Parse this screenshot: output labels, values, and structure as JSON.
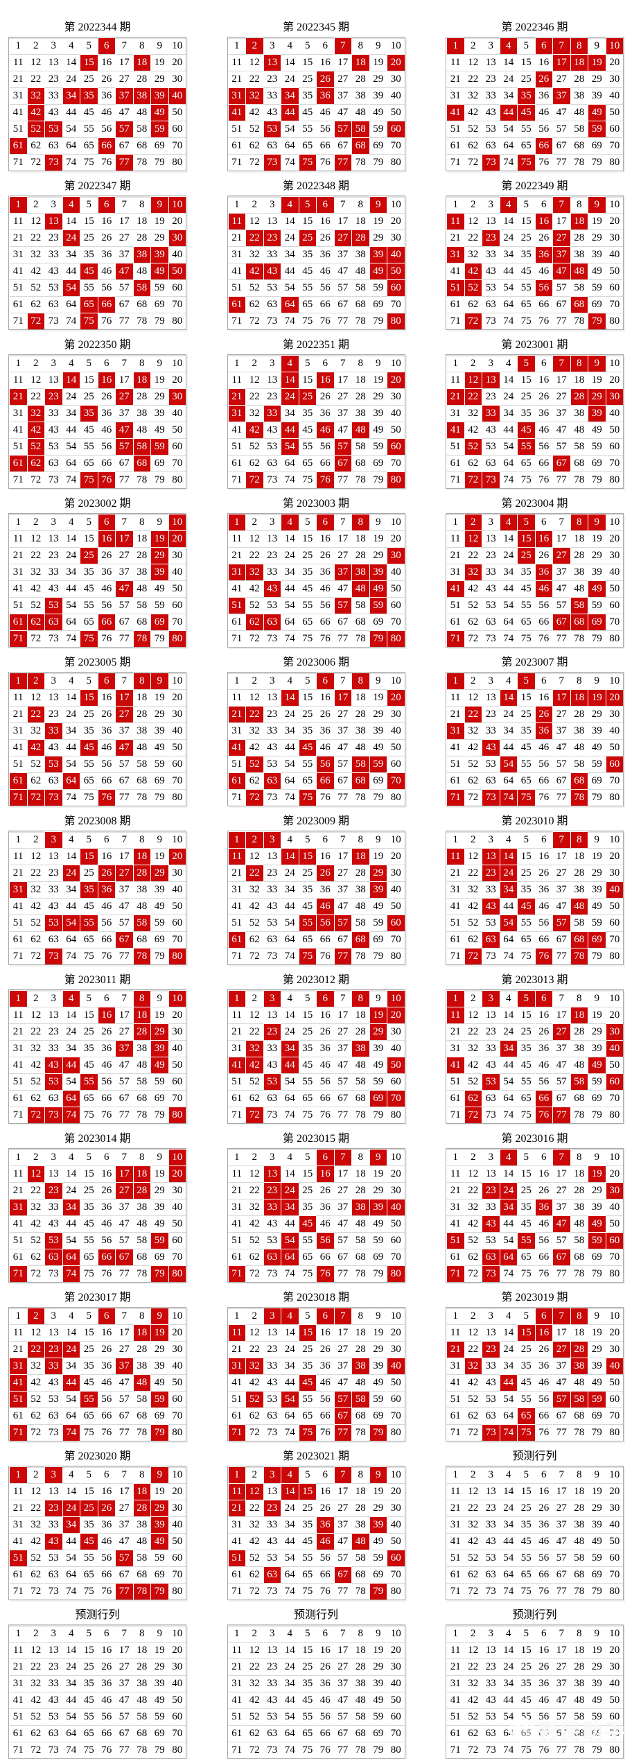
{
  "page": {
    "background": "#ffffff",
    "highlight_color": "#cb0707",
    "grid_border_color": "#a8a8a8",
    "row_line_color": "#d6d6d6",
    "number_color": "#000000",
    "hit_number_color": "#ffffff",
    "title_color": "#000000"
  },
  "grid_spec": {
    "numbers_start": 1,
    "numbers_end": 80,
    "columns": 10,
    "rows": 8,
    "panels_per_row": 3
  },
  "watermark": {
    "text": "彩民助手",
    "icon": "panda-circle-icon"
  },
  "chart_data": {
    "type": "heatmap",
    "description": "Keno-style lottery trend charts: numbers 1-80 per panel, drawn numbers highlighted",
    "panels": [
      {
        "title": "第 2022344 期",
        "hits": [
          6,
          15,
          18,
          32,
          34,
          35,
          37,
          38,
          39,
          40,
          42,
          49,
          52,
          53,
          57,
          59,
          61,
          66,
          73,
          77
        ]
      },
      {
        "title": "第 2022345 期",
        "hits": [
          2,
          7,
          13,
          18,
          20,
          26,
          31,
          32,
          34,
          36,
          41,
          44,
          53,
          57,
          58,
          60,
          68,
          73,
          75,
          77
        ]
      },
      {
        "title": "第 2022346 期",
        "hits": [
          1,
          4,
          6,
          7,
          8,
          10,
          17,
          18,
          19,
          26,
          35,
          37,
          41,
          44,
          45,
          49,
          59,
          66,
          73,
          75
        ]
      },
      {
        "title": "第 2022347 期",
        "hits": [
          1,
          4,
          6,
          9,
          10,
          13,
          24,
          30,
          38,
          39,
          45,
          47,
          49,
          50,
          54,
          58,
          65,
          66,
          72,
          75
        ]
      },
      {
        "title": "第 2022348 期",
        "hits": [
          4,
          5,
          6,
          9,
          11,
          22,
          23,
          25,
          27,
          28,
          39,
          40,
          42,
          43,
          49,
          50,
          60,
          61,
          64,
          80
        ]
      },
      {
        "title": "第 2022349 期",
        "hits": [
          4,
          7,
          9,
          11,
          16,
          18,
          23,
          27,
          31,
          36,
          37,
          42,
          47,
          48,
          51,
          52,
          56,
          68,
          72,
          79
        ]
      },
      {
        "title": "第 2022350 期",
        "hits": [
          14,
          16,
          18,
          21,
          23,
          27,
          30,
          32,
          35,
          42,
          47,
          52,
          57,
          58,
          59,
          61,
          62,
          68,
          75,
          76
        ]
      },
      {
        "title": "第 2022351 期",
        "hits": [
          4,
          14,
          16,
          20,
          21,
          24,
          25,
          31,
          33,
          42,
          44,
          46,
          48,
          54,
          57,
          60,
          67,
          72,
          76,
          80
        ]
      },
      {
        "title": "第 2023001 期",
        "hits": [
          5,
          7,
          8,
          9,
          12,
          13,
          21,
          22,
          28,
          29,
          30,
          33,
          39,
          41,
          45,
          52,
          55,
          67,
          72,
          73
        ]
      },
      {
        "title": "第 2023002 期",
        "hits": [
          6,
          10,
          16,
          17,
          19,
          20,
          25,
          29,
          39,
          47,
          53,
          61,
          62,
          63,
          66,
          69,
          71,
          75,
          78,
          80
        ]
      },
      {
        "title": "第 2023003 期",
        "hits": [
          1,
          4,
          6,
          8,
          30,
          31,
          32,
          37,
          38,
          39,
          43,
          48,
          49,
          51,
          57,
          59,
          62,
          63,
          79,
          80
        ]
      },
      {
        "title": "第 2023004 期",
        "hits": [
          2,
          4,
          5,
          8,
          9,
          12,
          15,
          16,
          25,
          27,
          32,
          36,
          41,
          46,
          49,
          58,
          67,
          68,
          69,
          71
        ]
      },
      {
        "title": "第 2023005 期",
        "hits": [
          1,
          2,
          6,
          8,
          9,
          15,
          17,
          22,
          27,
          33,
          42,
          45,
          47,
          53,
          61,
          64,
          71,
          72,
          73,
          76
        ]
      },
      {
        "title": "第 2023006 期",
        "hits": [
          6,
          8,
          14,
          17,
          20,
          21,
          22,
          41,
          45,
          52,
          56,
          58,
          59,
          61,
          63,
          66,
          68,
          70,
          72,
          75
        ]
      },
      {
        "title": "第 2023007 期",
        "hits": [
          1,
          5,
          14,
          17,
          18,
          19,
          20,
          22,
          26,
          31,
          36,
          43,
          54,
          60,
          68,
          71,
          73,
          74,
          75,
          78
        ]
      },
      {
        "title": "第 2023008 期",
        "hits": [
          3,
          15,
          18,
          20,
          24,
          26,
          27,
          28,
          29,
          31,
          35,
          36,
          53,
          54,
          55,
          58,
          67,
          73,
          78,
          80
        ]
      },
      {
        "title": "第 2023009 期",
        "hits": [
          1,
          2,
          3,
          11,
          14,
          15,
          18,
          22,
          26,
          29,
          39,
          46,
          55,
          56,
          57,
          60,
          61,
          68,
          75,
          77
        ]
      },
      {
        "title": "第 2023010 期",
        "hits": [
          7,
          8,
          11,
          13,
          14,
          23,
          24,
          34,
          40,
          43,
          45,
          48,
          54,
          57,
          63,
          68,
          69,
          72,
          76,
          78
        ]
      },
      {
        "title": "第 2023011 期",
        "hits": [
          1,
          4,
          8,
          10,
          16,
          18,
          28,
          29,
          37,
          39,
          43,
          44,
          49,
          53,
          55,
          64,
          72,
          73,
          74,
          80
        ]
      },
      {
        "title": "第 2023012 期",
        "hits": [
          1,
          3,
          6,
          8,
          10,
          19,
          20,
          23,
          29,
          32,
          34,
          38,
          41,
          42,
          44,
          50,
          53,
          69,
          70,
          72
        ]
      },
      {
        "title": "第 2023013 期",
        "hits": [
          1,
          3,
          5,
          6,
          11,
          18,
          27,
          30,
          34,
          40,
          41,
          49,
          53,
          58,
          60,
          62,
          66,
          72,
          76,
          77
        ]
      },
      {
        "title": "第 2023014 期",
        "hits": [
          10,
          12,
          17,
          18,
          20,
          23,
          27,
          28,
          31,
          34,
          53,
          59,
          63,
          64,
          66,
          67,
          71,
          74,
          79,
          80
        ]
      },
      {
        "title": "第 2023015 期",
        "hits": [
          6,
          7,
          9,
          13,
          16,
          23,
          24,
          33,
          34,
          38,
          39,
          40,
          45,
          54,
          56,
          63,
          64,
          71,
          76,
          80
        ]
      },
      {
        "title": "第 2023016 期",
        "hits": [
          4,
          7,
          19,
          23,
          24,
          30,
          34,
          36,
          43,
          47,
          49,
          51,
          55,
          59,
          60,
          63,
          64,
          67,
          71,
          73
        ]
      },
      {
        "title": "第 2023017 期",
        "hits": [
          2,
          6,
          9,
          18,
          19,
          22,
          23,
          24,
          31,
          33,
          37,
          41,
          44,
          48,
          51,
          55,
          59,
          71,
          74,
          79
        ]
      },
      {
        "title": "第 2023018 期",
        "hits": [
          3,
          4,
          6,
          7,
          11,
          15,
          31,
          32,
          38,
          40,
          45,
          52,
          54,
          57,
          58,
          67,
          71,
          75,
          77,
          79
        ]
      },
      {
        "title": "第 2023019 期",
        "hits": [
          6,
          7,
          8,
          15,
          16,
          21,
          23,
          27,
          28,
          32,
          38,
          40,
          44,
          57,
          58,
          59,
          65,
          73,
          74,
          75
        ]
      },
      {
        "title": "第 2023020 期",
        "hits": [
          1,
          3,
          9,
          18,
          23,
          24,
          25,
          26,
          28,
          29,
          34,
          39,
          43,
          45,
          49,
          51,
          57,
          77,
          78,
          79
        ]
      },
      {
        "title": "第 2023021 期",
        "hits": [
          1,
          3,
          4,
          7,
          9,
          11,
          12,
          14,
          15,
          21,
          23,
          36,
          39,
          46,
          48,
          51,
          60,
          63,
          67,
          79
        ]
      },
      {
        "title": "预测行列",
        "hits": []
      },
      {
        "title": "预测行列",
        "hits": []
      },
      {
        "title": "预测行列",
        "hits": []
      },
      {
        "title": "预测行列",
        "hits": []
      }
    ]
  }
}
